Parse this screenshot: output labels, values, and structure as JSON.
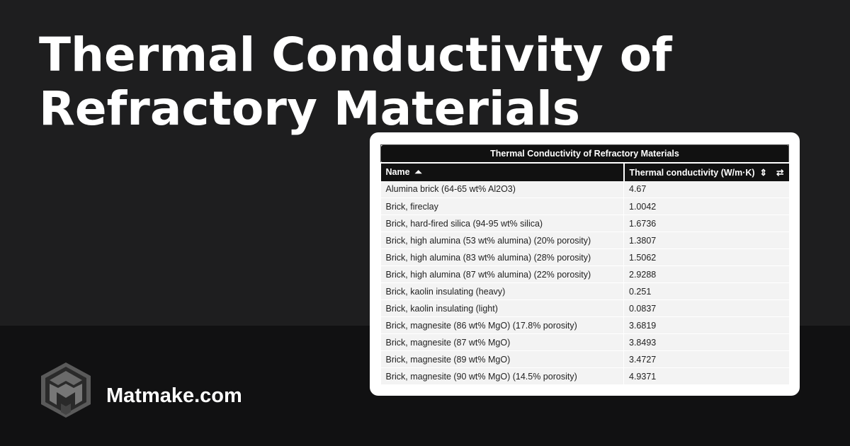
{
  "page": {
    "title": "Thermal Conductivity of Refractory Materials",
    "brand": "Matmake.com",
    "colors": {
      "background_top": "#1e1e1f",
      "background_bottom": "#111112",
      "table_header": "#111111"
    }
  },
  "table": {
    "caption": "Thermal Conductivity of Refractory Materials",
    "columns": [
      {
        "label": "Name",
        "sort": "ascending",
        "icon": "sort-up-icon"
      },
      {
        "label": "Thermal conductivity (W/m·K)",
        "sort": "none",
        "icon": "sort-icon"
      }
    ],
    "toggle_icon": "swap-arrows-icon",
    "rows": [
      [
        "Alumina brick (64-65 wt% Al2O3)",
        "4.67"
      ],
      [
        "Brick, fireclay",
        "1.0042"
      ],
      [
        "Brick, hard-fired silica (94-95 wt% silica)",
        "1.6736"
      ],
      [
        "Brick, high alumina (53 wt% alumina) (20% porosity)",
        "1.3807"
      ],
      [
        "Brick, high alumina (83 wt% alumina) (28% porosity)",
        "1.5062"
      ],
      [
        "Brick, high alumina (87 wt% alumina) (22% porosity)",
        "2.9288"
      ],
      [
        "Brick, kaolin insulating (heavy)",
        "0.251"
      ],
      [
        "Brick, kaolin insulating (light)",
        "0.0837"
      ],
      [
        "Brick, magnesite (86 wt% MgO) (17.8% porosity)",
        "3.6819"
      ],
      [
        "Brick, magnesite (87 wt% MgO)",
        "3.8493"
      ],
      [
        "Brick, magnesite (89 wt% MgO)",
        "3.4727"
      ],
      [
        "Brick, magnesite (90 wt% MgO) (14.5% porosity)",
        "4.9371"
      ]
    ]
  }
}
